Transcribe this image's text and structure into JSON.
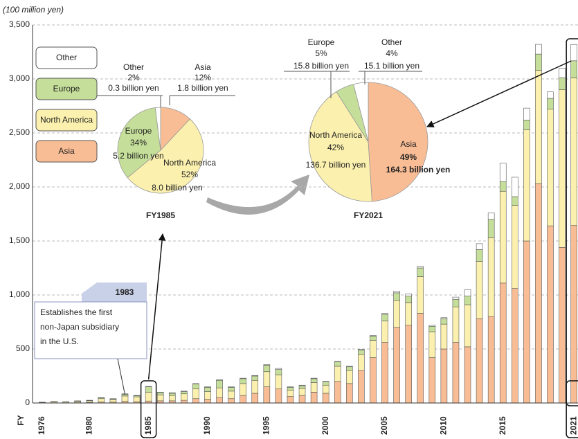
{
  "chart_data": [
    {
      "type": "bar",
      "unit_label": "(100 million yen)",
      "x_label": "FY",
      "categories": [
        "1976",
        null,
        null,
        null,
        "1980",
        null,
        null,
        null,
        null,
        "1985",
        null,
        null,
        null,
        null,
        "1990",
        null,
        null,
        null,
        null,
        "1995",
        null,
        null,
        null,
        null,
        "2000",
        null,
        null,
        null,
        null,
        "2005",
        null,
        null,
        null,
        null,
        "2010",
        null,
        null,
        null,
        null,
        "2015",
        null,
        null,
        null,
        null,
        null,
        "2021"
      ],
      "series": [
        {
          "name": "Asia",
          "color": "#f9bd95",
          "values": [
            1,
            2,
            2,
            3,
            5,
            10,
            8,
            15,
            12,
            18,
            20,
            20,
            25,
            40,
            35,
            50,
            40,
            70,
            90,
            150,
            130,
            60,
            70,
            100,
            90,
            200,
            180,
            300,
            420,
            560,
            700,
            720,
            830,
            420,
            500,
            560,
            520,
            780,
            800,
            1110,
            1060,
            1500,
            2030,
            1640,
            1440,
            1643
          ]
        },
        {
          "name": "North America",
          "color": "#fbf0ae",
          "values": [
            5,
            10,
            8,
            12,
            15,
            30,
            25,
            50,
            45,
            80,
            55,
            50,
            60,
            90,
            70,
            90,
            70,
            110,
            120,
            140,
            130,
            60,
            65,
            90,
            75,
            140,
            120,
            150,
            160,
            200,
            250,
            210,
            340,
            240,
            230,
            330,
            390,
            530,
            730,
            850,
            770,
            1030,
            1050,
            1080,
            1460,
            1367
          ]
        },
        {
          "name": "Europe",
          "color": "#c5df9a",
          "values": [
            1,
            2,
            1,
            3,
            4,
            8,
            5,
            15,
            10,
            52,
            20,
            20,
            20,
            45,
            40,
            70,
            35,
            45,
            40,
            60,
            50,
            25,
            25,
            35,
            30,
            40,
            35,
            40,
            40,
            60,
            70,
            60,
            80,
            50,
            50,
            70,
            80,
            110,
            170,
            90,
            80,
            90,
            150,
            100,
            110,
            158
          ]
        },
        {
          "name": "Other",
          "color": "#ffffff",
          "values": [
            1,
            1,
            1,
            2,
            1,
            2,
            2,
            5,
            3,
            3,
            5,
            5,
            5,
            5,
            5,
            5,
            5,
            5,
            5,
            5,
            10,
            5,
            5,
            5,
            5,
            5,
            5,
            5,
            5,
            10,
            15,
            20,
            15,
            10,
            10,
            20,
            60,
            55,
            60,
            170,
            180,
            110,
            90,
            60,
            90,
            151
          ]
        }
      ],
      "ylim": [
        0,
        3500
      ],
      "yticks": [
        0,
        500,
        {
          "value": 1000,
          "label": "1,000"
        },
        {
          "value": 1500,
          "label": "1,500"
        },
        {
          "value": 2000,
          "label": "2,000"
        },
        {
          "value": 2500,
          "label": "2,500"
        },
        {
          "value": 3000,
          "label": "3,000"
        },
        {
          "value": 3500,
          "label": "3,500"
        }
      ],
      "grid": true,
      "annotation": {
        "label": "1983",
        "lines": [
          "Establishes the first",
          "non-Japan subsidiary",
          "in the U.S."
        ]
      }
    },
    {
      "type": "pie",
      "title": "FY1985",
      "categories": [
        "Asia",
        "North America",
        "Europe",
        "Other"
      ],
      "values": [
        12,
        52,
        34,
        2
      ],
      "value_labels": [
        "12%",
        "52%",
        "34%",
        "2%"
      ],
      "amount_labels": [
        "1.8 billion yen",
        "8.0 billion yen",
        "5.2 billion yen",
        "0.3 billion yen"
      ],
      "colors": [
        "#f9bd95",
        "#fbf0ae",
        "#c5df9a",
        "#ffffff"
      ]
    },
    {
      "type": "pie",
      "title": "FY2021",
      "categories": [
        "Asia",
        "North America",
        "Europe",
        "Other"
      ],
      "values": [
        49,
        42,
        5,
        4
      ],
      "value_labels": [
        "49%",
        "42%",
        "5%",
        "4%"
      ],
      "amount_labels": [
        "164.3 billion yen",
        "136.7 billion yen",
        "15.8 billion yen",
        "15.1 billion yen"
      ],
      "colors": [
        "#f9bd95",
        "#fbf0ae",
        "#c5df9a",
        "#ffffff"
      ]
    }
  ]
}
